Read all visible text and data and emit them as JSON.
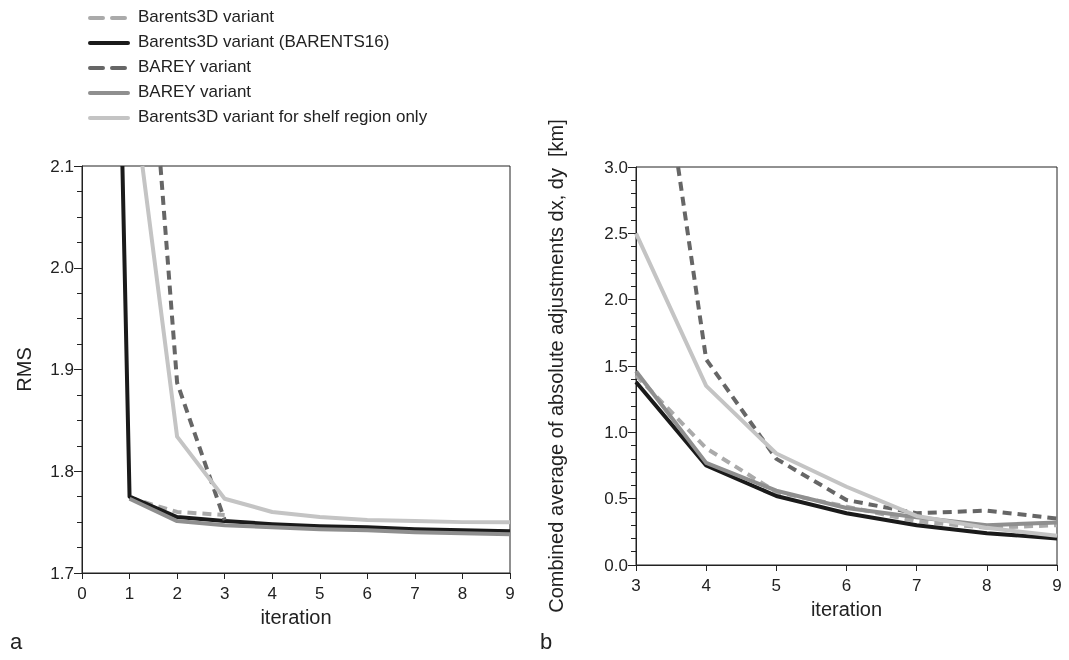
{
  "chart_data": [
    {
      "type": "line",
      "xlabel": "iteration",
      "ylabel": "RMS",
      "xlim": [
        0,
        9
      ],
      "xticks": [
        0,
        1,
        2,
        3,
        4,
        5,
        6,
        7,
        8,
        9
      ],
      "ylim": [
        1.7,
        2.1
      ],
      "yticks": [
        1.7,
        1.8,
        1.9,
        {
          "value": 2,
          "label": "2.0"
        },
        2.1
      ],
      "grid": false,
      "legend": "top",
      "marker": "none",
      "annotations": [
        "a"
      ],
      "series": [
        {
          "name": "Barents3D variant",
          "color": "#aaaaaa",
          "line_style": "dashed",
          "x": [
            1,
            2,
            3
          ],
          "values": [
            1.774,
            1.76,
            1.757
          ]
        },
        {
          "name": "Barents3D variant (BARENTS16)",
          "color": "#1a1a1a",
          "line_style": "solid",
          "x": [
            0.85,
            1,
            2,
            3,
            4,
            5,
            6,
            7,
            8,
            9
          ],
          "values": [
            2.1,
            1.775,
            1.755,
            1.751,
            1.748,
            1.746,
            1.745,
            1.743,
            1.742,
            1.741
          ]
        },
        {
          "name": "BAREY variant",
          "color": "#666666",
          "line_style": "dashed",
          "x": [
            1.65,
            2,
            3
          ],
          "values": [
            2.1,
            1.887,
            1.752
          ]
        },
        {
          "name": "BAREY variant",
          "color": "#8f8f8f",
          "line_style": "solid",
          "x": [
            1,
            2,
            3,
            4,
            5,
            6,
            7,
            8,
            9
          ],
          "values": [
            1.773,
            1.751,
            1.747,
            1.745,
            1.743,
            1.742,
            1.74,
            1.739,
            1.738
          ]
        },
        {
          "name": "Barents3D variant for shelf region only",
          "color": "#c4c4c4",
          "line_style": "solid",
          "x": [
            1.27,
            2,
            3,
            4,
            5,
            6,
            7,
            8,
            9
          ],
          "values": [
            2.1,
            1.834,
            1.773,
            1.76,
            1.755,
            1.752,
            1.751,
            1.75,
            1.75
          ]
        }
      ]
    },
    {
      "type": "line",
      "xlabel": "iteration",
      "ylabel": "Combined average of absolute adjustments dx, dy  [km]",
      "xlim": [
        3,
        9
      ],
      "xticks": [
        3,
        4,
        5,
        6,
        7,
        8,
        9
      ],
      "ylim": [
        0,
        3
      ],
      "yticks": [
        {
          "value": 0,
          "label": "0.0"
        },
        0.5,
        {
          "value": 1,
          "label": "1.0"
        },
        1.5,
        {
          "value": 2,
          "label": "2.0"
        },
        2.5,
        {
          "value": 3,
          "label": "3.0"
        }
      ],
      "grid": false,
      "legend": false,
      "marker": "none",
      "annotations": [
        "b"
      ],
      "series": [
        {
          "color": "#aaaaaa",
          "line_style": "dashed",
          "x": [
            3,
            4,
            5,
            6,
            7,
            8,
            9
          ],
          "values": [
            1.43,
            0.88,
            0.55,
            0.44,
            0.33,
            0.28,
            0.3
          ]
        },
        {
          "color": "#1a1a1a",
          "line_style": "solid",
          "x": [
            3,
            4,
            5,
            6,
            7,
            8,
            9
          ],
          "values": [
            1.38,
            0.75,
            0.52,
            0.39,
            0.3,
            0.24,
            0.2
          ]
        },
        {
          "color": "#666666",
          "line_style": "dashed",
          "x": [
            3.6,
            4,
            5,
            6,
            7,
            8,
            9
          ],
          "values": [
            3.0,
            1.55,
            0.8,
            0.49,
            0.39,
            0.41,
            0.35
          ]
        },
        {
          "color": "#8f8f8f",
          "line_style": "solid",
          "x": [
            3,
            4,
            5,
            6,
            7,
            8,
            9
          ],
          "values": [
            1.46,
            0.77,
            0.56,
            0.43,
            0.36,
            0.3,
            0.32
          ]
        },
        {
          "color": "#c4c4c4",
          "line_style": "solid",
          "x": [
            3,
            4,
            5,
            6,
            7,
            8,
            9
          ],
          "values": [
            2.5,
            1.35,
            0.84,
            0.59,
            0.37,
            0.28,
            0.22
          ]
        }
      ]
    }
  ]
}
